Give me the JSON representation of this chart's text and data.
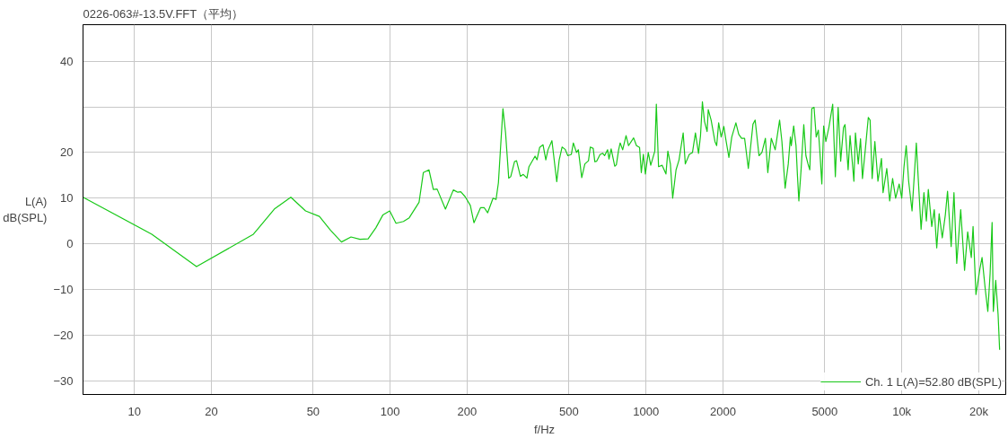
{
  "chart_data": {
    "type": "line",
    "title": "0226-063#-13.5V.FFT（平均）",
    "ylabel": "L(A)\ndB(SPL)",
    "xlabel": "f/Hz",
    "log": "x",
    "grid": true,
    "legend": "bottom right",
    "xlim": [
      6.3,
      25500
    ],
    "ylim": [
      -33,
      48
    ],
    "xticks": [
      10,
      20,
      50,
      100,
      200,
      500,
      1000,
      2000,
      5000,
      {
        "value": 10000,
        "label": "10k"
      },
      {
        "value": 20000,
        "label": "20k"
      }
    ],
    "yticks": [
      -30,
      -20,
      -10,
      0,
      10,
      20,
      {
        "value": 30,
        "label": null
      },
      40
    ],
    "series": [
      {
        "name": "Ch. 1 L(A)=52.80 dB(SPL)",
        "color": "#19c919",
        "x": [
          6.3,
          11.7,
          17.5,
          29.2,
          35.4,
          40.9,
          46.7,
          52.9,
          58.4,
          64.5,
          70.3,
          76.2,
          82,
          87.9,
          93.6,
          99.6,
          105.4,
          112.7,
          118.7,
          129.7,
          134.8,
          141.8,
          147.5,
          152.6,
          164.5,
          176.6,
          183.8,
          188.8,
          196.5,
          205.8,
          212.6,
          225.5,
          233.3,
          240.6,
          252.5,
          259.4,
          265,
          276,
          282.6,
          290.7,
          296,
          306.3,
          312,
          323,
          331.5,
          342.5,
          348.9,
          368.5,
          375,
          384,
          396,
          406,
          414,
          429,
          448,
          458,
          470,
          483,
          495,
          511,
          520,
          535,
          544,
          561,
          577,
          596,
          606,
          622,
          631,
          642,
          662,
          678,
          689,
          708,
          717,
          731,
          755,
          766,
          782,
          793,
          811,
          836,
          855,
          895,
          918,
          944,
          959,
          977,
          995,
          1021,
          1044,
          1083,
          1098,
          1120,
          1157,
          1197,
          1218,
          1246,
          1272,
          1311,
          1347,
          1398,
          1425,
          1477,
          1520,
          1561,
          1605,
          1634,
          1662,
          1694,
          1734,
          1752,
          1798,
          1861,
          1890,
          1924,
          1968,
          2016,
          2049,
          2110,
          2165,
          2247,
          2305,
          2365,
          2430,
          2513,
          2620,
          2672,
          2767,
          2840,
          2930,
          2995,
          3090,
          3200,
          3330,
          3400,
          3500,
          3600,
          3670,
          3700,
          3780,
          3860,
          3910,
          3960,
          4040,
          4140,
          4220,
          4300,
          4370,
          4450,
          4540,
          4630,
          4720,
          4780,
          4870,
          4950,
          5050,
          5190,
          5370,
          5500,
          5640,
          5770,
          5920,
          6000,
          6170,
          6280,
          6500,
          6590,
          6760,
          6900,
          7020,
          7210,
          7400,
          7520,
          7660,
          7850,
          8070,
          8330,
          8450,
          8740,
          8970,
          9210,
          9460,
          9770,
          10000,
          10200,
          10410,
          10640,
          10970,
          11230,
          11400,
          11600,
          11900,
          12210,
          12480,
          12700,
          13100,
          13400,
          13700,
          14000,
          14400,
          14800,
          15100,
          15600,
          16000,
          16400,
          17000,
          17600,
          18100,
          18700,
          19000,
          19500,
          20200,
          20600,
          21200,
          21700,
          22150,
          22550,
          22800,
          23300,
          23800,
          24130
        ],
        "values": [
          10.2,
          2.1,
          -5.0,
          2.1,
          7.7,
          10.2,
          7.2,
          6.0,
          3.0,
          0.4,
          1.5,
          1.0,
          1.1,
          3.5,
          6.3,
          7.2,
          4.5,
          4.9,
          5.7,
          9.1,
          15.6,
          16.2,
          11.9,
          12.0,
          7.6,
          11.8,
          11.3,
          11.4,
          10.3,
          8.4,
          4.6,
          7.9,
          7.9,
          6.8,
          10.0,
          9.7,
          13.4,
          29.6,
          24.3,
          14.4,
          14.7,
          18.0,
          18.2,
          14.8,
          15.2,
          14.4,
          16.9,
          19.2,
          18.4,
          21.1,
          21.7,
          18.4,
          20.6,
          22.6,
          13.6,
          18.4,
          21.2,
          20.7,
          19.3,
          19.6,
          22.1,
          20.0,
          20.6,
          14.5,
          17.5,
          18.2,
          21.2,
          20.9,
          18.0,
          18.1,
          19.6,
          19.8,
          19.3,
          20.6,
          18.6,
          20.8,
          17.0,
          17.3,
          20.6,
          22.1,
          20.6,
          23.7,
          21.5,
          23.2,
          21.5,
          21.1,
          15.6,
          19.6,
          15.3,
          20.0,
          17.2,
          20.3,
          30.6,
          16.9,
          17.2,
          15.3,
          20.3,
          17.5,
          10.0,
          16.2,
          18.4,
          24.3,
          17.5,
          19.6,
          20.0,
          24.3,
          19.8,
          23.7,
          31.1,
          26.8,
          24.6,
          29.4,
          27.1,
          22.4,
          21.5,
          26.5,
          23.4,
          25.7,
          23.1,
          18.9,
          23.4,
          26.5,
          24.0,
          23.1,
          23.1,
          16.5,
          26.2,
          27.1,
          19.3,
          20.0,
          23.1,
          15.6,
          23.1,
          20.6,
          27.1,
          22.4,
          12.2,
          17.5,
          23.4,
          21.5,
          25.8,
          21.5,
          15.0,
          9.4,
          16.2,
          26.1,
          19.3,
          17.5,
          16.2,
          29.6,
          29.9,
          23.4,
          24.9,
          20.6,
          13.1,
          25.8,
          22.4,
          25.5,
          30.6,
          14.7,
          29.9,
          18.1,
          25.5,
          26.1,
          16.2,
          23.7,
          13.7,
          24.3,
          17.5,
          23.0,
          14.3,
          20.9,
          27.7,
          27.1,
          14.3,
          22.4,
          13.7,
          18.7,
          11.2,
          16.5,
          9.4,
          14.3,
          10.0,
          13.1,
          10.0,
          16.8,
          21.5,
          13.7,
          7.2,
          16.2,
          22.1,
          14.3,
          3.2,
          11.2,
          5.0,
          11.9,
          3.8,
          7.5,
          -0.9,
          6.6,
          1.3,
          6.3,
          11.5,
          -0.6,
          11.2,
          -4.3,
          7.5,
          -5.8,
          2.6,
          -3.0,
          3.8,
          -11.1,
          -5.5,
          -3.0,
          -9.9,
          -14.8,
          -6.5,
          4.7,
          -14.8,
          -8.0,
          -15.5,
          -23.2
        ]
      }
    ]
  }
}
